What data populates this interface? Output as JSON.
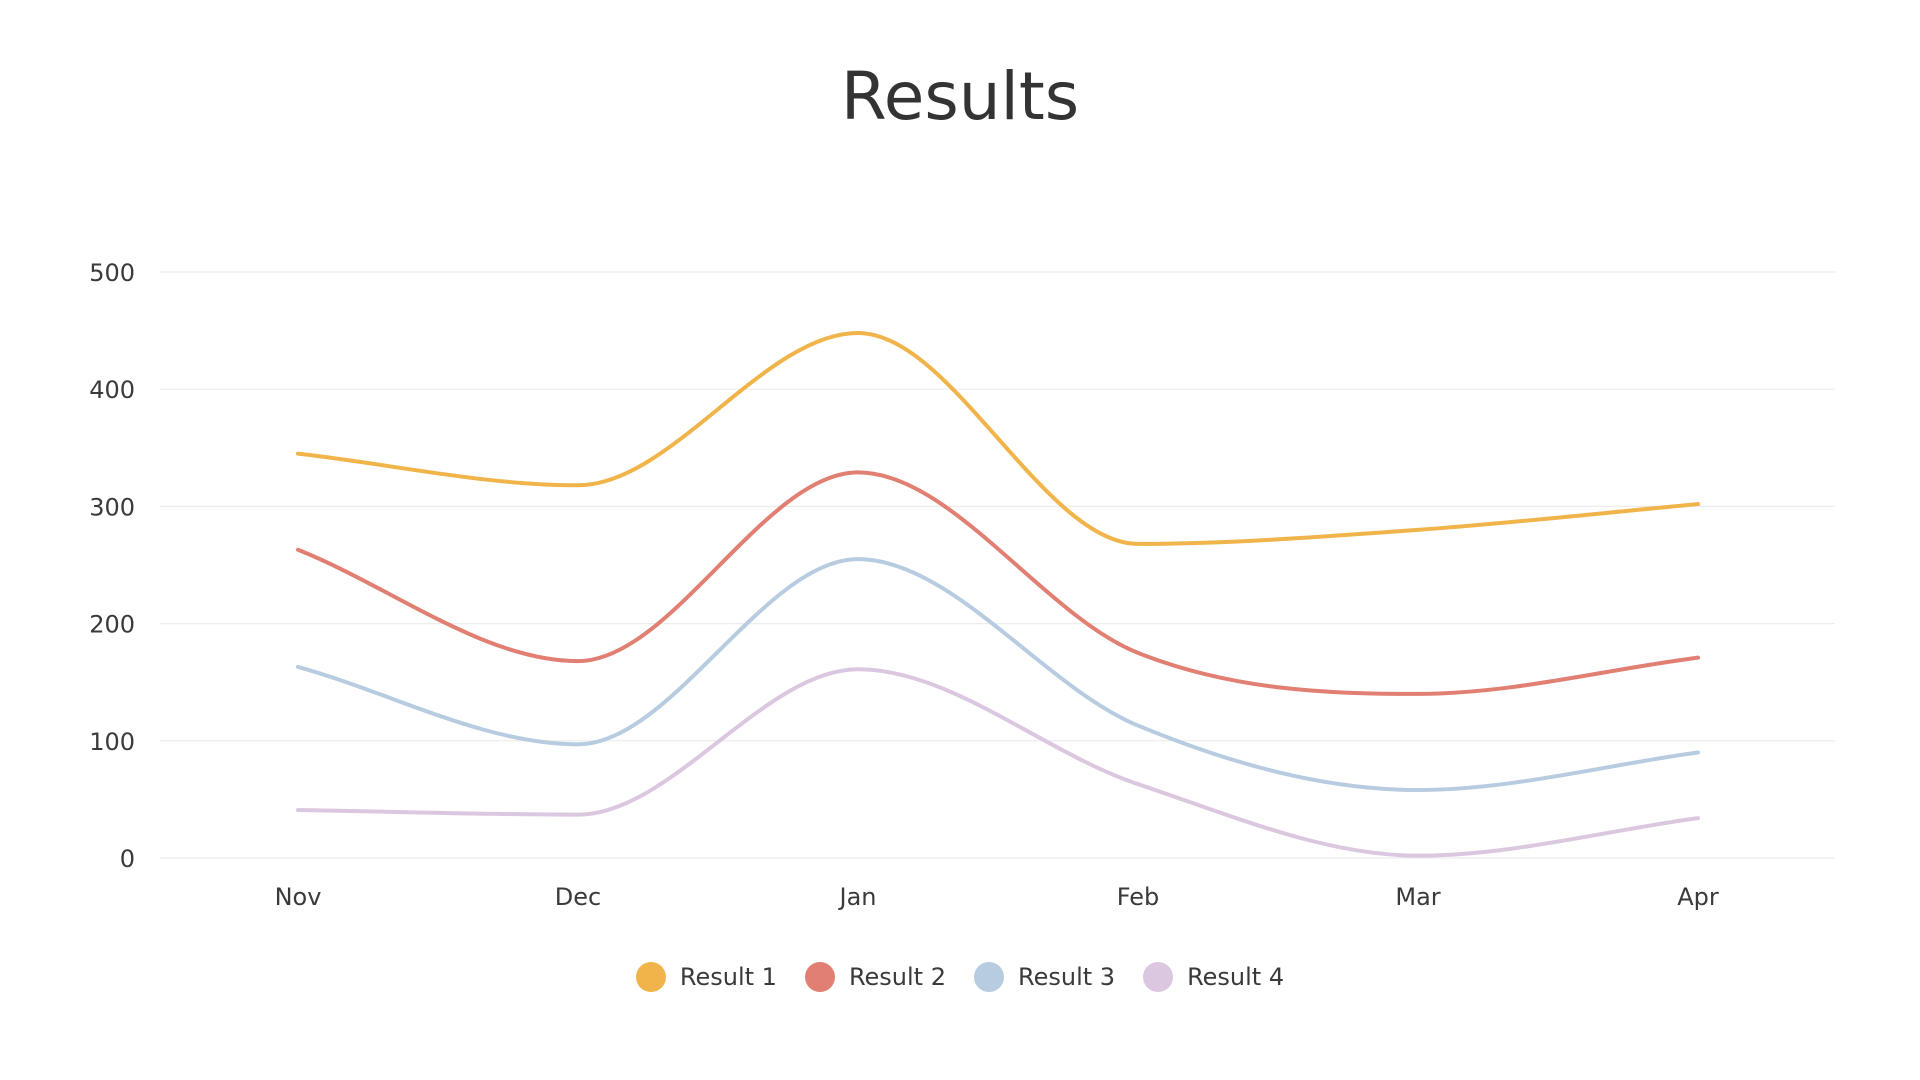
{
  "chart_data": {
    "type": "line",
    "title": "Results",
    "xlabel": "",
    "ylabel": "",
    "categories": [
      "Nov",
      "Dec",
      "Jan",
      "Feb",
      "Mar",
      "Apr"
    ],
    "ylim": [
      0,
      500
    ],
    "yticks": [
      "0",
      "100",
      "200",
      "300",
      "400",
      "500"
    ],
    "grid": true,
    "smooth": true,
    "legend_position": "bottom-center",
    "series": [
      {
        "name": "Result 1",
        "color": "#F0B44A",
        "values": [
          345,
          318,
          448,
          268,
          280,
          302
        ]
      },
      {
        "name": "Result 2",
        "color": "#E07F72",
        "values": [
          263,
          168,
          329,
          175,
          140,
          171
        ]
      },
      {
        "name": "Result 3",
        "color": "#B7CCE0",
        "values": [
          163,
          97,
          255,
          113,
          58,
          90
        ]
      },
      {
        "name": "Result 4",
        "color": "#DCC7E0",
        "values": [
          41,
          37,
          161,
          63,
          2,
          34
        ]
      }
    ]
  }
}
